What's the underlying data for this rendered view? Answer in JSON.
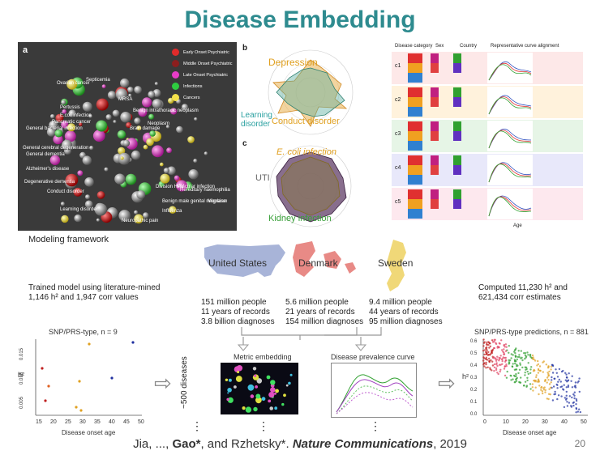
{
  "slide": {
    "title": "Disease Embedding",
    "page_number": "20"
  },
  "panel_a": {
    "letter": "a",
    "legend": [
      {
        "label": "Early Onset Psychiatric",
        "color": "#e02b2b"
      },
      {
        "label": "Middle Onset Psychiatric",
        "color": "#8b1e1e"
      },
      {
        "label": "Late Onset Psychiatric",
        "color": "#e83cc8"
      },
      {
        "label": "Infections",
        "color": "#2ecc40"
      },
      {
        "label": "Cancers",
        "color": "#f3e04a"
      }
    ],
    "labels": [
      "Septicemia",
      "Ovarian cancer",
      "Pertussis",
      "E.coli infection",
      "Pancreatic cancer",
      "General bacterial infection",
      "General cerebral degeneration",
      "General dementia",
      "Alzheimer's disease",
      "Degenerative dementia",
      "Conduct disorder",
      "Learning disorder",
      "MRSA",
      "Benign intrathoracic neoplasm",
      "Brain damage",
      "Neoplasm",
      "Hereditary haemophilia",
      "Vascular infection",
      "Migraine",
      "Benign male genital neoplasm",
      "Influenza",
      "Neuropathic pain",
      "Division HPV"
    ]
  },
  "panel_b": {
    "letter": "b",
    "labels": [
      "Depression",
      "Learning disorder",
      "Conduct disorder"
    ]
  },
  "panel_c": {
    "letter": "c",
    "labels": [
      "E. coli infection",
      "UTI",
      "Kidney infection"
    ]
  },
  "table": {
    "headers": [
      "Disease category",
      "Sex",
      "Country",
      "Representative curve alignment"
    ],
    "clusters": [
      "c1",
      "c2",
      "c3",
      "c4",
      "c5"
    ],
    "xlabel": "Age"
  },
  "framework": {
    "heading": "Modeling framework",
    "trained_text": "Trained model using literature-mined",
    "trained_values": "1,146 h² and 1,947 corr values",
    "countries": [
      {
        "name": "United States",
        "people": "151 million people",
        "years": "11 years of records",
        "diagnoses": "3.8 billion diagnoses"
      },
      {
        "name": "Denmark",
        "people": "5.6 million people",
        "years": "21 years of records",
        "diagnoses": "154 million diagnoses"
      },
      {
        "name": "Sweden",
        "people": "9.4 million people",
        "years": "44 years of records",
        "diagnoses": "95 million diagnoses"
      }
    ],
    "computed_line1": "Computed 11,230 h² and",
    "computed_line2": "621,434 corr estimates",
    "left_plot_title": "SNP/PRS-type, n = 9",
    "left_plot_xlabel": "Disease onset age",
    "left_plot_ylabel": "h²",
    "left_plot_xticks": [
      "15",
      "20",
      "25",
      "30",
      "35",
      "40",
      "45",
      "50"
    ],
    "left_plot_yticks": [
      "0.005",
      "0.010",
      "0.015"
    ],
    "middle_label": "~500 diseases",
    "metric_title": "Metric embedding",
    "prevalence_title": "Disease prevalence curve",
    "right_plot_title": "SNP/PRS-type predictions, n = 881",
    "right_plot_xlabel": "Disease onset age",
    "right_plot_ylabel": "h²",
    "right_plot_xticks": [
      "0",
      "10",
      "20",
      "30",
      "40",
      "50"
    ],
    "right_plot_yticks": [
      "0.0",
      "0.1",
      "0.2",
      "0.3",
      "0.4",
      "0.5",
      "0.6"
    ],
    "dots": "⋮"
  },
  "citation": {
    "prefix": "Jia, ..., ",
    "gao": "Gao*",
    "mid": ", and Rzhetsky*. ",
    "journal": "Nature Communications",
    "year": ", 2019"
  }
}
